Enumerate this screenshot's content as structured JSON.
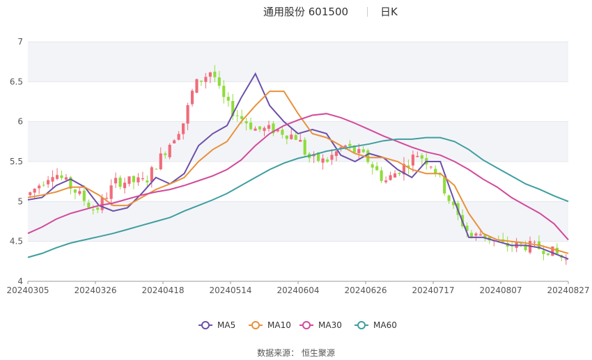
{
  "header": {
    "title": "通用股份 601500",
    "period": "日K"
  },
  "footer": {
    "source": "数据来源： 恒生聚源"
  },
  "colors": {
    "up": "#f06b7a",
    "down": "#8fdc3c",
    "MA5": "#6b4faa",
    "MA10": "#e8913a",
    "MA30": "#d2499b",
    "MA60": "#3e9e9e",
    "band": "#f3f4f8",
    "grid": "#e5e7ee"
  },
  "chart_data": {
    "type": "candlestick",
    "title": "通用股份 601500",
    "period": "日K",
    "ylim": [
      4,
      7
    ],
    "y_ticks": [
      4,
      4.5,
      5,
      5.5,
      6,
      6.5,
      7
    ],
    "x_ticks": [
      "20240305",
      "20240326",
      "20240418",
      "20240514",
      "20240604",
      "20240626",
      "20240717",
      "20240807",
      "20240827"
    ],
    "legend_position": "bottom-center",
    "legend": [
      "MA5",
      "MA10",
      "MA30",
      "MA60"
    ],
    "ohlc_anchors": [
      {
        "date": "20240305",
        "price": 5.08
      },
      {
        "date": "20240313",
        "price": 5.38
      },
      {
        "date": "20240320",
        "price": 5.12
      },
      {
        "date": "20240326",
        "price": 4.88
      },
      {
        "date": "20240402",
        "price": 5.25
      },
      {
        "date": "20240412",
        "price": 5.25
      },
      {
        "date": "20240418",
        "price": 5.6
      },
      {
        "date": "20240426",
        "price": 6.0
      },
      {
        "date": "20240430",
        "price": 6.45
      },
      {
        "date": "20240507",
        "price": 6.65
      },
      {
        "date": "20240510",
        "price": 6.35
      },
      {
        "date": "20240514",
        "price": 6.15
      },
      {
        "date": "20240522",
        "price": 5.9
      },
      {
        "date": "20240528",
        "price": 5.9
      },
      {
        "date": "20240604",
        "price": 5.8
      },
      {
        "date": "20240607",
        "price": 5.55
      },
      {
        "date": "20240613",
        "price": 5.5
      },
      {
        "date": "20240619",
        "price": 5.7
      },
      {
        "date": "20240626",
        "price": 5.55
      },
      {
        "date": "20240702",
        "price": 5.25
      },
      {
        "date": "20240708",
        "price": 5.45
      },
      {
        "date": "20240712",
        "price": 5.6
      },
      {
        "date": "20240717",
        "price": 5.45
      },
      {
        "date": "20240724",
        "price": 4.85
      },
      {
        "date": "20240729",
        "price": 4.55
      },
      {
        "date": "20240801",
        "price": 4.6
      },
      {
        "date": "20240807",
        "price": 4.45
      },
      {
        "date": "20240814",
        "price": 4.45
      },
      {
        "date": "20240821",
        "price": 4.4
      },
      {
        "date": "20240827",
        "price": 4.25
      }
    ],
    "series": [
      {
        "name": "MA5",
        "values": [
          5.02,
          5.05,
          5.2,
          5.28,
          5.18,
          4.95,
          4.88,
          4.92,
          5.1,
          5.3,
          5.22,
          5.35,
          5.7,
          5.85,
          5.95,
          6.3,
          6.6,
          6.2,
          6.0,
          5.85,
          5.9,
          5.85,
          5.58,
          5.5,
          5.6,
          5.55,
          5.4,
          5.3,
          5.5,
          5.5,
          5.0,
          4.55,
          4.55,
          4.5,
          4.45,
          4.45,
          4.42,
          4.35,
          4.28
        ]
      },
      {
        "name": "MA10",
        "values": [
          5.05,
          5.08,
          5.12,
          5.18,
          5.18,
          5.08,
          4.95,
          4.95,
          5.05,
          5.15,
          5.22,
          5.3,
          5.5,
          5.65,
          5.75,
          6.0,
          6.2,
          6.38,
          6.38,
          6.1,
          5.85,
          5.8,
          5.7,
          5.6,
          5.55,
          5.55,
          5.5,
          5.4,
          5.35,
          5.35,
          5.2,
          4.85,
          4.6,
          4.52,
          4.5,
          4.48,
          4.45,
          4.4,
          4.35
        ]
      },
      {
        "name": "MA30",
        "values": [
          4.6,
          4.68,
          4.78,
          4.85,
          4.9,
          4.95,
          4.98,
          5.03,
          5.08,
          5.12,
          5.15,
          5.2,
          5.26,
          5.32,
          5.4,
          5.52,
          5.7,
          5.85,
          5.95,
          6.02,
          6.08,
          6.1,
          6.05,
          5.98,
          5.9,
          5.82,
          5.75,
          5.68,
          5.62,
          5.58,
          5.5,
          5.4,
          5.28,
          5.18,
          5.05,
          4.95,
          4.85,
          4.72,
          4.52
        ]
      },
      {
        "name": "MA60",
        "values": [
          4.3,
          4.35,
          4.42,
          4.48,
          4.52,
          4.56,
          4.6,
          4.65,
          4.7,
          4.75,
          4.8,
          4.88,
          4.95,
          5.02,
          5.1,
          5.2,
          5.3,
          5.4,
          5.48,
          5.54,
          5.58,
          5.63,
          5.66,
          5.69,
          5.72,
          5.76,
          5.78,
          5.78,
          5.8,
          5.8,
          5.75,
          5.65,
          5.52,
          5.42,
          5.32,
          5.22,
          5.15,
          5.07,
          5.0
        ]
      }
    ]
  }
}
